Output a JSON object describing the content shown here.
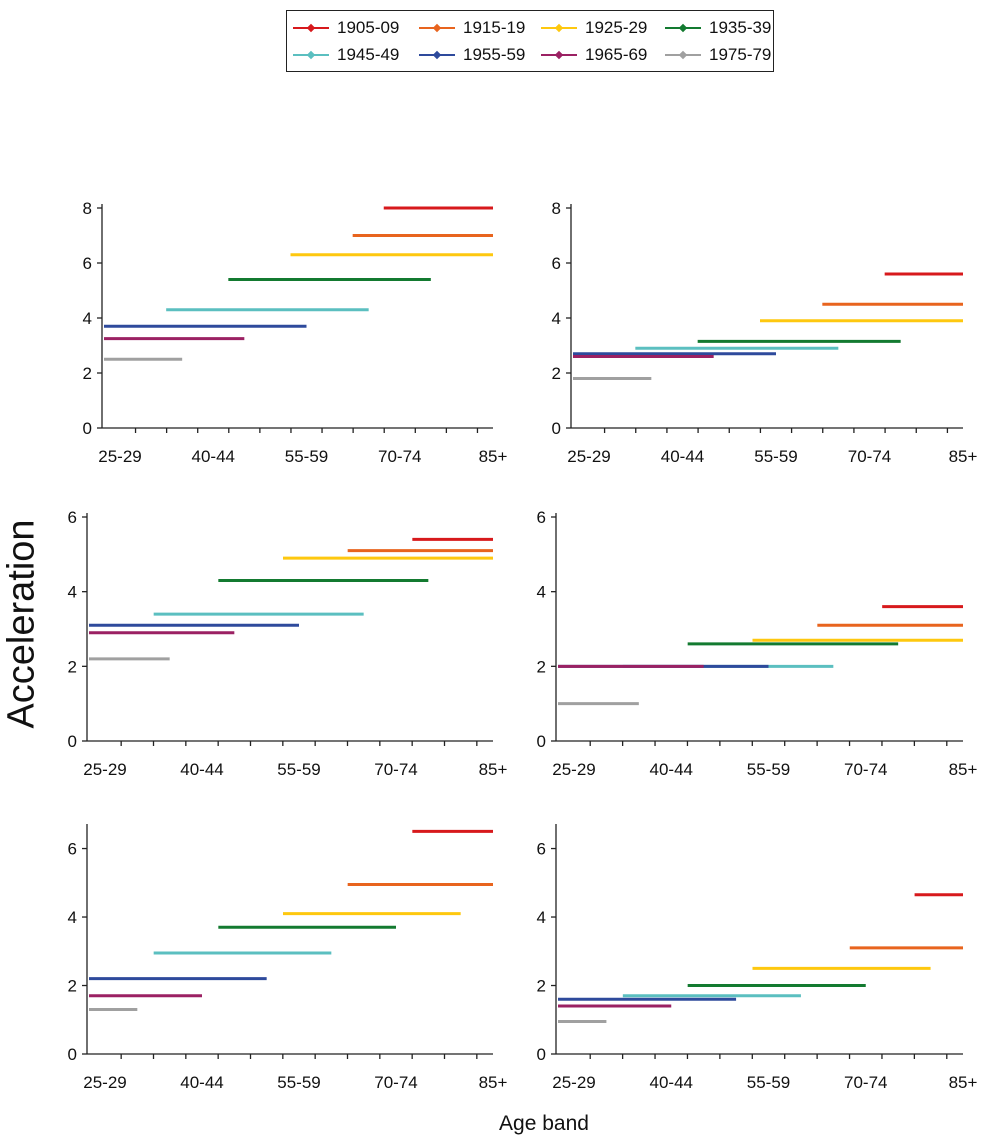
{
  "legend": [
    {
      "name": "1905-09",
      "color": "#d7191c"
    },
    {
      "name": "1915-19",
      "color": "#e8641e"
    },
    {
      "name": "1925-29",
      "color": "#fec80f"
    },
    {
      "name": "1935-39",
      "color": "#137a30"
    },
    {
      "name": "1945-49",
      "color": "#5bbfc0"
    },
    {
      "name": "1955-59",
      "color": "#2e4a9c"
    },
    {
      "name": "1965-69",
      "color": "#9b2163"
    },
    {
      "name": "1975-79",
      "color": "#a0a0a0"
    }
  ],
  "ylabel": "Acceleration",
  "xlabel": "Age band",
  "chart_data": [
    {
      "type": "line",
      "x_tick_labels": [
        "25-29",
        "40-44",
        "55-59",
        "70-74",
        "85+"
      ],
      "ylim": [
        0,
        8
      ],
      "yticks": [
        0,
        2,
        4,
        6,
        8
      ],
      "series": [
        {
          "name": "1905-09",
          "x": [
            "70-74",
            "85+"
          ],
          "y": 8.0
        },
        {
          "name": "1915-19",
          "x": [
            "65-69",
            "85+"
          ],
          "y": 7.0
        },
        {
          "name": "1925-29",
          "x": [
            "55-59",
            "85+"
          ],
          "y": 6.3
        },
        {
          "name": "1935-39",
          "x": [
            "45-49",
            "75-79"
          ],
          "y": 5.4
        },
        {
          "name": "1945-49",
          "x": [
            "35-39",
            "65-69"
          ],
          "y": 4.3
        },
        {
          "name": "1955-59",
          "x": [
            "25-29",
            "55-59"
          ],
          "y": 3.7
        },
        {
          "name": "1965-69",
          "x": [
            "25-29",
            "45-49"
          ],
          "y": 3.25
        },
        {
          "name": "1975-79",
          "x": [
            "25-29",
            "35-39"
          ],
          "y": 2.5
        }
      ]
    },
    {
      "type": "line",
      "x_tick_labels": [
        "25-29",
        "40-44",
        "55-59",
        "70-74",
        "85+"
      ],
      "ylim": [
        0,
        8
      ],
      "yticks": [
        0,
        2,
        4,
        6,
        8
      ],
      "series": [
        {
          "name": "1905-09",
          "x": [
            "75-79",
            "85+"
          ],
          "y": 5.6
        },
        {
          "name": "1915-19",
          "x": [
            "65-69",
            "85+"
          ],
          "y": 4.5
        },
        {
          "name": "1925-29",
          "x": [
            "55-59",
            "85+"
          ],
          "y": 3.9
        },
        {
          "name": "1935-39",
          "x": [
            "45-49",
            "75-79"
          ],
          "y": 3.15
        },
        {
          "name": "1945-49",
          "x": [
            "35-39",
            "65-69"
          ],
          "y": 2.9
        },
        {
          "name": "1955-59",
          "x": [
            "25-29",
            "55-59"
          ],
          "y": 2.7
        },
        {
          "name": "1965-69",
          "x": [
            "25-29",
            "45-49"
          ],
          "y": 2.6
        },
        {
          "name": "1975-79",
          "x": [
            "25-29",
            "35-39"
          ],
          "y": 1.8
        }
      ]
    },
    {
      "type": "line",
      "x_tick_labels": [
        "25-29",
        "40-44",
        "55-59",
        "70-74",
        "85+"
      ],
      "ylim": [
        0,
        6
      ],
      "yticks": [
        0,
        2,
        4,
        6
      ],
      "series": [
        {
          "name": "1905-09",
          "x": [
            "75-79",
            "85+"
          ],
          "y": 5.4
        },
        {
          "name": "1915-19",
          "x": [
            "65-69",
            "85+"
          ],
          "y": 5.1
        },
        {
          "name": "1925-29",
          "x": [
            "55-59",
            "85+"
          ],
          "y": 4.9
        },
        {
          "name": "1935-39",
          "x": [
            "45-49",
            "75-79"
          ],
          "y": 4.3
        },
        {
          "name": "1945-49",
          "x": [
            "35-39",
            "65-69"
          ],
          "y": 3.4
        },
        {
          "name": "1955-59",
          "x": [
            "25-29",
            "55-59"
          ],
          "y": 3.1
        },
        {
          "name": "1965-69",
          "x": [
            "25-29",
            "45-49"
          ],
          "y": 2.9
        },
        {
          "name": "1975-79",
          "x": [
            "25-29",
            "35-39"
          ],
          "y": 2.2
        }
      ]
    },
    {
      "type": "line",
      "x_tick_labels": [
        "25-29",
        "40-44",
        "55-59",
        "70-74",
        "85+"
      ],
      "ylim": [
        0,
        6
      ],
      "yticks": [
        0,
        2,
        4,
        6
      ],
      "series": [
        {
          "name": "1905-09",
          "x": [
            "75-79",
            "85+"
          ],
          "y": 3.6
        },
        {
          "name": "1915-19",
          "x": [
            "65-69",
            "85+"
          ],
          "y": 3.1
        },
        {
          "name": "1925-29",
          "x": [
            "55-59",
            "85+"
          ],
          "y": 2.7
        },
        {
          "name": "1935-39",
          "x": [
            "45-49",
            "75-79"
          ],
          "y": 2.6
        },
        {
          "name": "1945-49",
          "x": [
            "35-39",
            "65-69"
          ],
          "y": 2.0
        },
        {
          "name": "1955-59",
          "x": [
            "25-29",
            "55-59"
          ],
          "y": 2.0
        },
        {
          "name": "1965-69",
          "x": [
            "25-29",
            "45-49"
          ],
          "y": 2.0
        },
        {
          "name": "1975-79",
          "x": [
            "25-29",
            "35-39"
          ],
          "y": 1.0
        }
      ]
    },
    {
      "type": "line",
      "x_tick_labels": [
        "25-29",
        "40-44",
        "55-59",
        "70-74",
        "85+"
      ],
      "ylim": [
        0,
        6.6
      ],
      "yticks": [
        0,
        2,
        4,
        6
      ],
      "series": [
        {
          "name": "1905-09",
          "x": [
            "75-79",
            "85+"
          ],
          "y": 6.5
        },
        {
          "name": "1915-19",
          "x": [
            "65-69",
            "85+"
          ],
          "y": 4.95
        },
        {
          "name": "1925-29",
          "x": [
            "55-59",
            "80-84"
          ],
          "y": 4.1
        },
        {
          "name": "1935-39",
          "x": [
            "45-49",
            "70-74"
          ],
          "y": 3.7
        },
        {
          "name": "1945-49",
          "x": [
            "35-39",
            "60-64"
          ],
          "y": 2.95
        },
        {
          "name": "1955-59",
          "x": [
            "25-29",
            "50-54"
          ],
          "y": 2.2
        },
        {
          "name": "1965-69",
          "x": [
            "25-29",
            "40-44"
          ],
          "y": 1.7
        },
        {
          "name": "1975-79",
          "x": [
            "25-29",
            "30-34"
          ],
          "y": 1.3
        }
      ]
    },
    {
      "type": "line",
      "x_tick_labels": [
        "25-29",
        "40-44",
        "55-59",
        "70-74",
        "85+"
      ],
      "ylim": [
        0,
        6.6
      ],
      "yticks": [
        0,
        2,
        4,
        6
      ],
      "series": [
        {
          "name": "1905-09",
          "x": [
            "80-84",
            "85+"
          ],
          "y": 4.65
        },
        {
          "name": "1915-19",
          "x": [
            "70-74",
            "85+"
          ],
          "y": 3.1
        },
        {
          "name": "1925-29",
          "x": [
            "55-59",
            "80-84"
          ],
          "y": 2.5
        },
        {
          "name": "1935-39",
          "x": [
            "45-49",
            "70-74"
          ],
          "y": 2.0
        },
        {
          "name": "1945-49",
          "x": [
            "35-39",
            "60-64"
          ],
          "y": 1.7
        },
        {
          "name": "1955-59",
          "x": [
            "25-29",
            "50-54"
          ],
          "y": 1.6
        },
        {
          "name": "1965-69",
          "x": [
            "25-29",
            "40-44"
          ],
          "y": 1.4
        },
        {
          "name": "1975-79",
          "x": [
            "25-29",
            "30-34"
          ],
          "y": 0.95
        }
      ]
    }
  ]
}
